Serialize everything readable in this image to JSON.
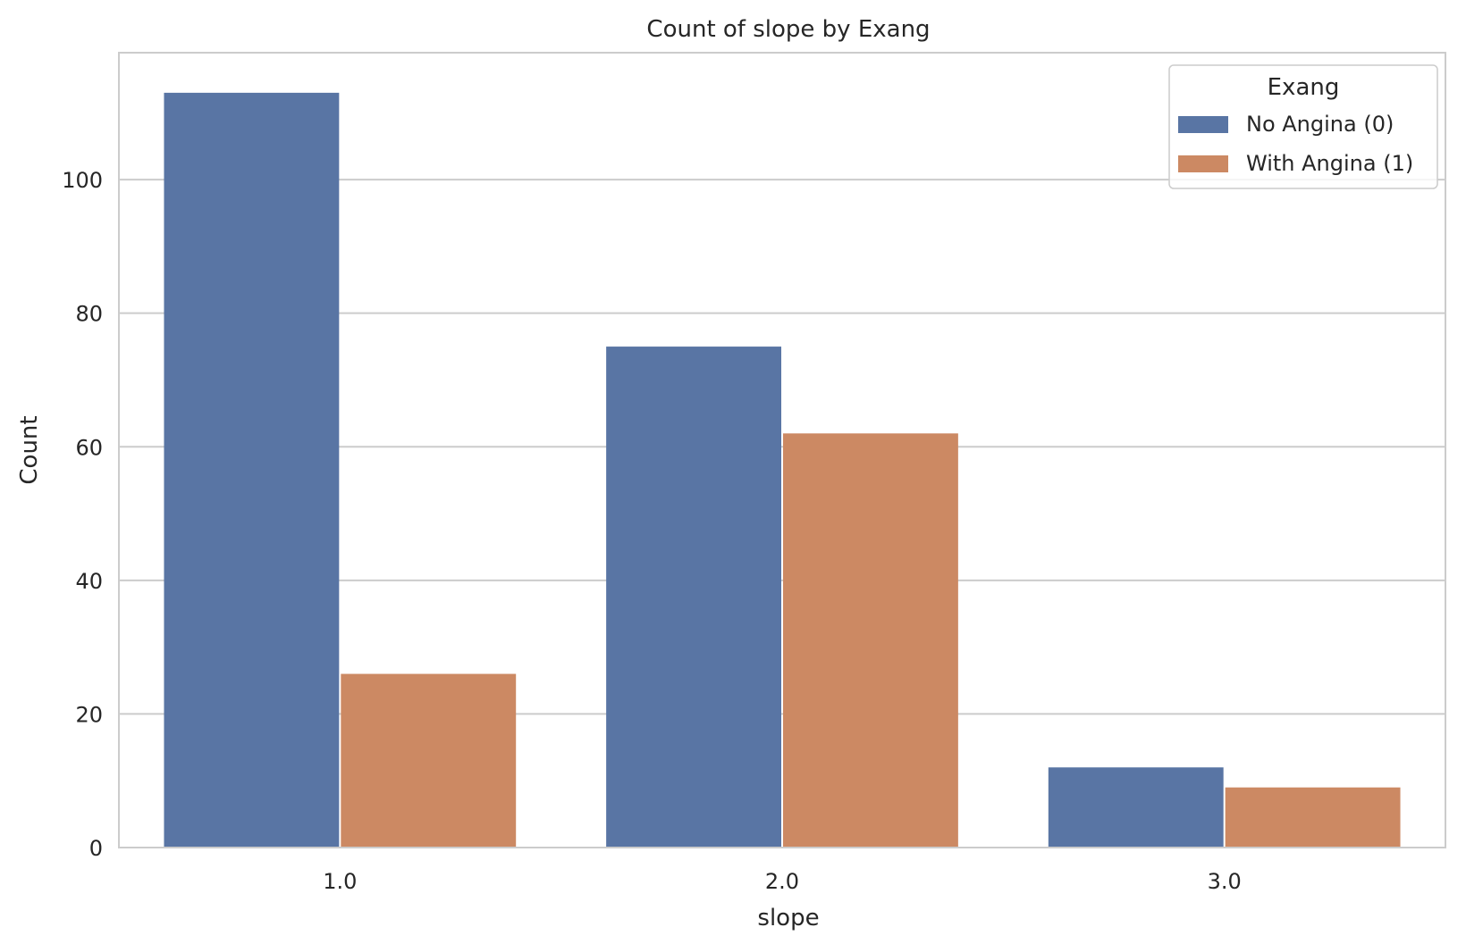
{
  "chart_data": {
    "type": "bar",
    "title": "Count of slope by Exang",
    "xlabel": "slope",
    "ylabel": "Count",
    "categories": [
      "1.0",
      "2.0",
      "3.0"
    ],
    "series": [
      {
        "name": "No Angina (0)",
        "values": [
          113,
          75,
          12
        ],
        "color": "#5975a4"
      },
      {
        "name": "With Angina (1)",
        "values": [
          26,
          62,
          9
        ],
        "color": "#cc8963"
      }
    ],
    "ylim": [
      0,
      119
    ],
    "yticks": [
      0,
      20,
      40,
      60,
      80,
      100
    ],
    "ytick_labels": [
      "0",
      "20",
      "40",
      "60",
      "80",
      "100"
    ],
    "grid": "horizontal",
    "legend": {
      "title": "Exang",
      "position": "top-right"
    }
  }
}
